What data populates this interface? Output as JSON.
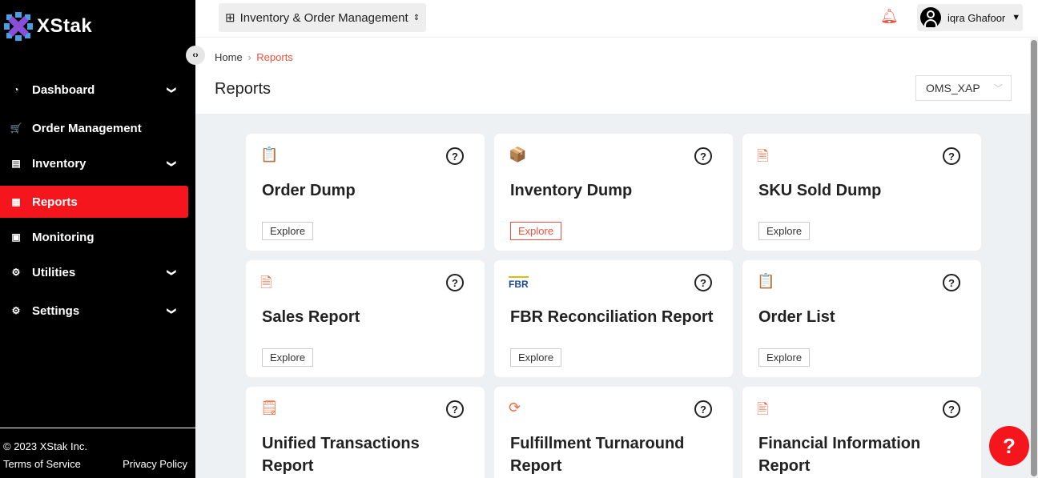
{
  "brand": {
    "name": "XStak"
  },
  "sidebar": {
    "items": [
      {
        "label": "Dashboard",
        "icon": "gauge-icon",
        "glyph": "◔",
        "chevron": true
      },
      {
        "label": "Order Management",
        "icon": "cart-icon",
        "glyph": "🛒",
        "chevron": false
      },
      {
        "label": "Inventory",
        "icon": "warehouse-icon",
        "glyph": "▤",
        "chevron": true
      },
      {
        "label": "Reports",
        "icon": "document-icon",
        "glyph": "▦",
        "chevron": false,
        "active": true
      },
      {
        "label": "Monitoring",
        "icon": "clipboard-icon",
        "glyph": "▣",
        "chevron": false
      },
      {
        "label": "Utilities",
        "icon": "sliders-icon",
        "glyph": "⚙",
        "chevron": true
      },
      {
        "label": "Settings",
        "icon": "gear-icon",
        "glyph": "⚙",
        "chevron": true
      }
    ],
    "copyright": "© 2023 XStak Inc.",
    "terms": "Terms of Service",
    "privacy": "Privacy Policy"
  },
  "topbar": {
    "app": "Inventory & Order Management",
    "user": "iqra Ghafoor"
  },
  "breadcrumb": {
    "home": "Home",
    "sep": "›",
    "current": "Reports"
  },
  "page": {
    "title": "Reports",
    "store": "OMS_XAP"
  },
  "explore_label": "Explore",
  "colors": {
    "accent": "#f0503c",
    "active": "#f5151d"
  },
  "cards": [
    {
      "title": "Order Dump",
      "icon": "clipboard-box-icon",
      "glyph": "📋"
    },
    {
      "title": "Inventory Dump",
      "icon": "boxes-icon",
      "glyph": "📦",
      "highlighted": true
    },
    {
      "title": "SKU Sold Dump",
      "icon": "report-stack-icon",
      "glyph": "🗎"
    },
    {
      "title": "Sales Report",
      "icon": "report-stack-icon",
      "glyph": "🗎"
    },
    {
      "title": "FBR Reconciliation Report",
      "icon": "fbr-logo-icon",
      "glyph": "FBR"
    },
    {
      "title": "Order List",
      "icon": "clipboard-box-icon",
      "glyph": "📋"
    },
    {
      "title": "Unified Transactions Report",
      "icon": "box-receipt-icon",
      "glyph": "🗒"
    },
    {
      "title": "Fulfillment Turnaround Report",
      "icon": "refresh-icon",
      "glyph": "⟳"
    },
    {
      "title": "Financial Information Report",
      "icon": "finance-doc-icon",
      "glyph": "🖹"
    }
  ],
  "help_glyph": "?"
}
